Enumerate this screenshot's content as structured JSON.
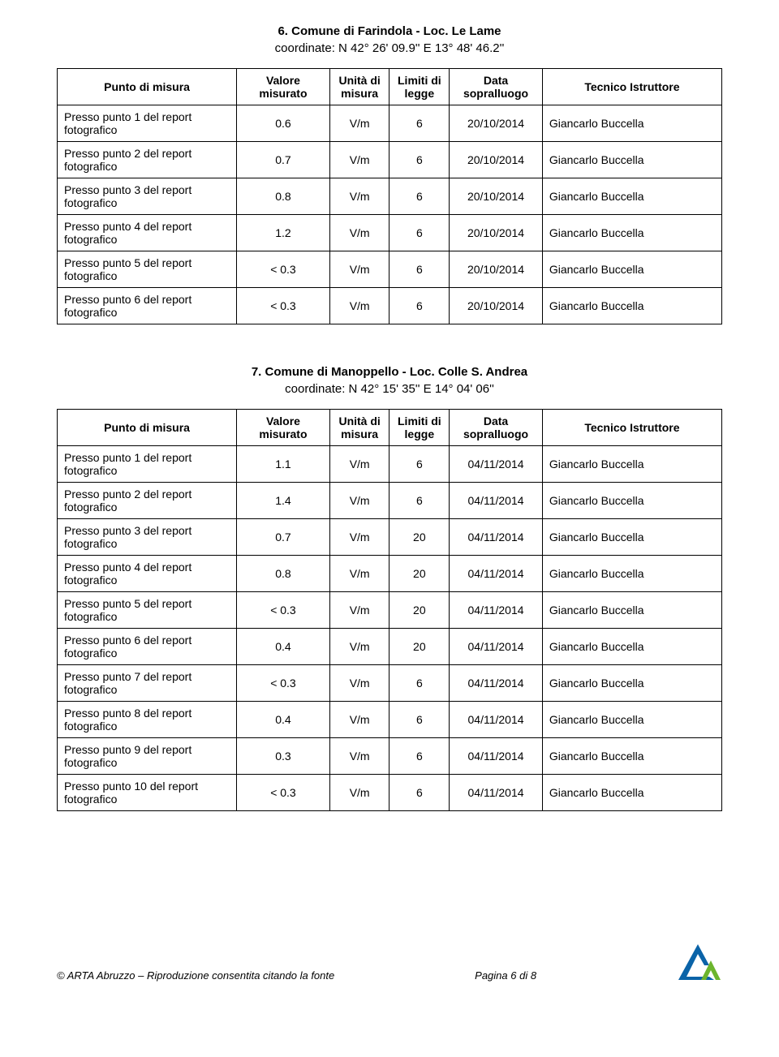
{
  "headers": {
    "point": "Punto di misura",
    "value": "Valore misurato",
    "unit": "Unità di misura",
    "limit": "Limiti di legge",
    "date": "Data sopralluogo",
    "tech": "Tecnico Istruttore"
  },
  "section1": {
    "title": "6. Comune di Farindola - Loc. Le Lame",
    "coords": "coordinate:   N 42° 26' 09.9''   E 13° 48' 46.2''",
    "rows": [
      {
        "point": "Presso punto 1 del report fotografico",
        "value": "0.6",
        "unit": "V/m",
        "limit": "6",
        "date": "20/10/2014",
        "tech": "Giancarlo Buccella"
      },
      {
        "point": "Presso punto 2 del report fotografico",
        "value": "0.7",
        "unit": "V/m",
        "limit": "6",
        "date": "20/10/2014",
        "tech": "Giancarlo Buccella"
      },
      {
        "point": "Presso punto 3 del report fotografico",
        "value": "0.8",
        "unit": "V/m",
        "limit": "6",
        "date": "20/10/2014",
        "tech": "Giancarlo Buccella"
      },
      {
        "point": "Presso punto 4 del report fotografico",
        "value": "1.2",
        "unit": "V/m",
        "limit": "6",
        "date": "20/10/2014",
        "tech": "Giancarlo Buccella"
      },
      {
        "point": "Presso punto 5 del report fotografico",
        "value": "< 0.3",
        "unit": "V/m",
        "limit": "6",
        "date": "20/10/2014",
        "tech": "Giancarlo Buccella"
      },
      {
        "point": "Presso punto 6 del report fotografico",
        "value": "< 0.3",
        "unit": "V/m",
        "limit": "6",
        "date": "20/10/2014",
        "tech": "Giancarlo Buccella"
      }
    ]
  },
  "section2": {
    "title": "7. Comune di Manoppello - Loc. Colle S. Andrea",
    "coords": "coordinate:   N 42° 15' 35''   E 14° 04' 06''",
    "rows": [
      {
        "point": "Presso punto 1 del report fotografico",
        "value": "1.1",
        "unit": "V/m",
        "limit": "6",
        "date": "04/11/2014",
        "tech": "Giancarlo Buccella"
      },
      {
        "point": "Presso punto 2 del report fotografico",
        "value": "1.4",
        "unit": "V/m",
        "limit": "6",
        "date": "04/11/2014",
        "tech": "Giancarlo Buccella"
      },
      {
        "point": "Presso punto 3 del report fotografico",
        "value": "0.7",
        "unit": "V/m",
        "limit": "20",
        "date": "04/11/2014",
        "tech": "Giancarlo Buccella"
      },
      {
        "point": "Presso punto 4 del report fotografico",
        "value": "0.8",
        "unit": "V/m",
        "limit": "20",
        "date": "04/11/2014",
        "tech": "Giancarlo Buccella"
      },
      {
        "point": "Presso punto 5 del report fotografico",
        "value": "< 0.3",
        "unit": "V/m",
        "limit": "20",
        "date": "04/11/2014",
        "tech": "Giancarlo Buccella"
      },
      {
        "point": "Presso punto 6 del report fotografico",
        "value": "0.4",
        "unit": "V/m",
        "limit": "20",
        "date": "04/11/2014",
        "tech": "Giancarlo Buccella"
      },
      {
        "point": "Presso punto 7 del report fotografico",
        "value": "< 0.3",
        "unit": "V/m",
        "limit": "6",
        "date": "04/11/2014",
        "tech": "Giancarlo Buccella"
      },
      {
        "point": "Presso punto 8 del report fotografico",
        "value": "0.4",
        "unit": "V/m",
        "limit": "6",
        "date": "04/11/2014",
        "tech": "Giancarlo Buccella"
      },
      {
        "point": "Presso punto 9 del report fotografico",
        "value": "0.3",
        "unit": "V/m",
        "limit": "6",
        "date": "04/11/2014",
        "tech": "Giancarlo Buccella"
      },
      {
        "point": "Presso punto 10 del report fotografico",
        "value": "< 0.3",
        "unit": "V/m",
        "limit": "6",
        "date": "04/11/2014",
        "tech": "Giancarlo Buccella"
      }
    ]
  },
  "footer": {
    "left": "© ARTA Abruzzo – Riproduzione consentita citando la fonte",
    "right": "Pagina 6 di 8"
  },
  "logo_colors": {
    "outer": "#0a63a8",
    "inner": "#6cb52d"
  }
}
